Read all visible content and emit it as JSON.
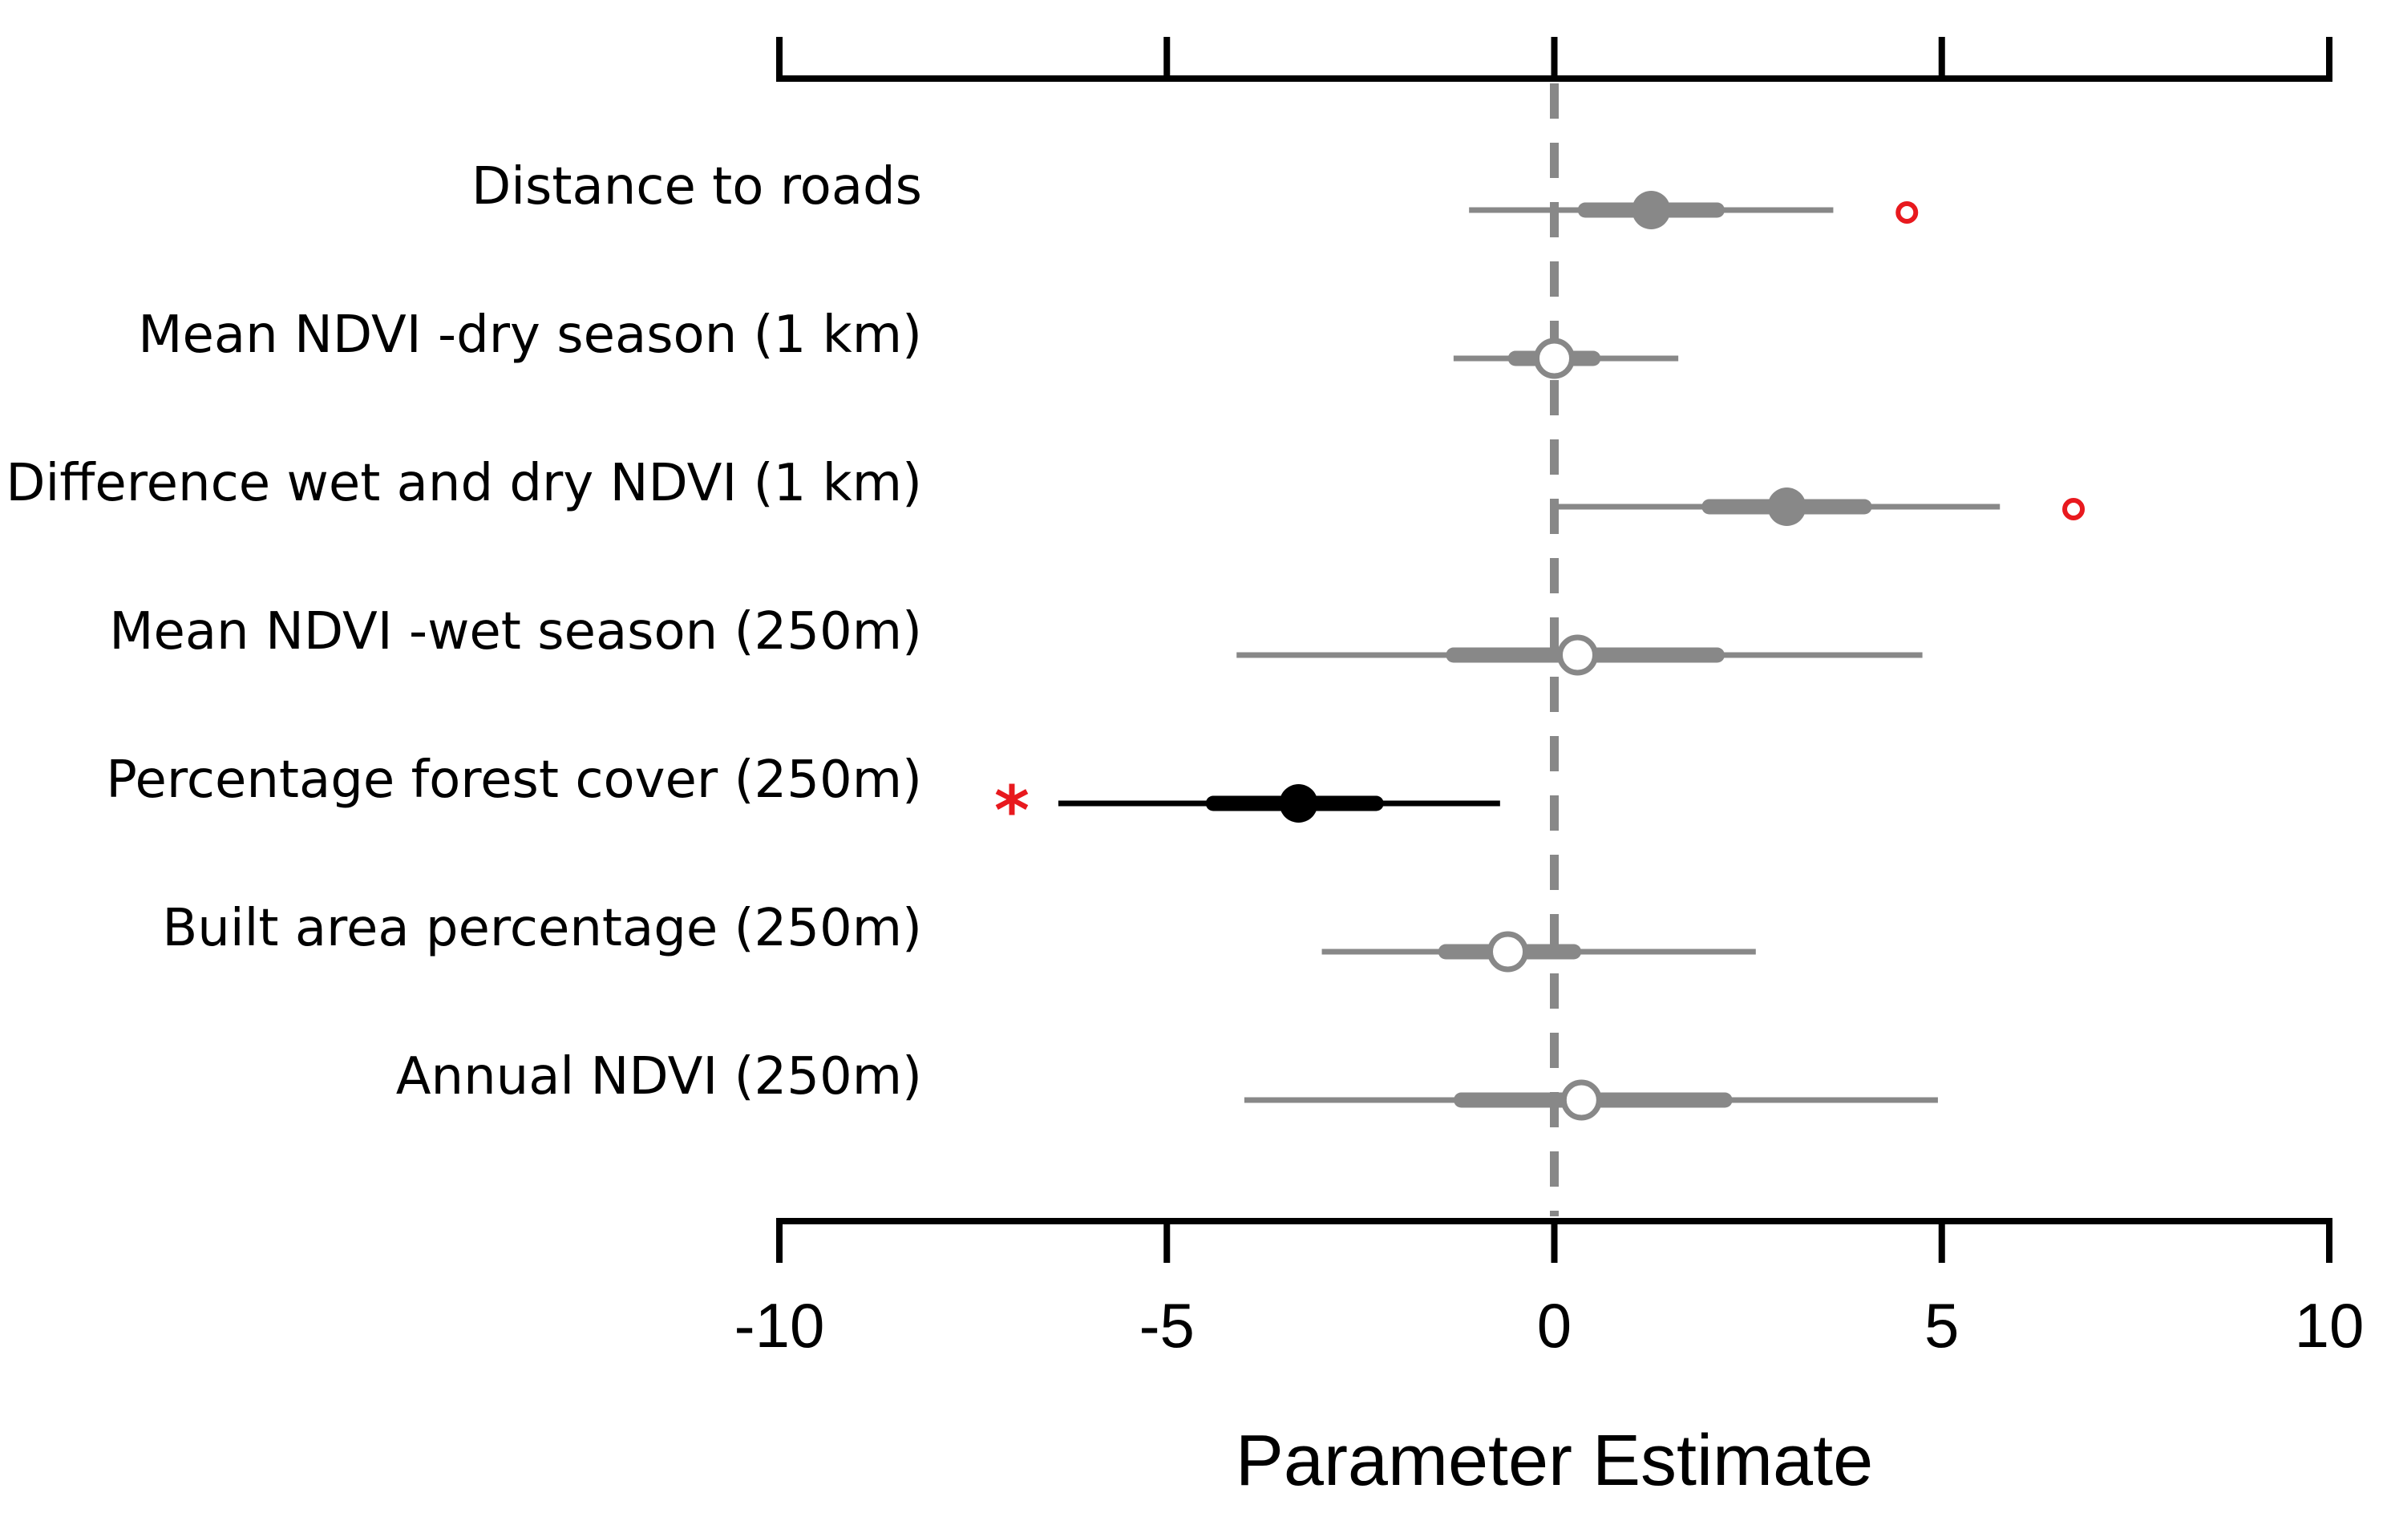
{
  "chart_data": {
    "type": "coefficient-plot",
    "title": "",
    "xlabel": "Parameter Estimate",
    "ylabel": "",
    "xlim": [
      -10,
      10
    ],
    "xticks": [
      -10,
      -5,
      0,
      5,
      10
    ],
    "xtick_labels": [
      "-10",
      "-5",
      "0",
      "5",
      "10"
    ],
    "reference_line": 0,
    "colors": {
      "nonsignificant": "#888888",
      "significant": "#000000",
      "flag": "#e8191e",
      "open_fill": "#ffffff"
    },
    "series": [
      {
        "name": "Distance to roads",
        "estimate": 1.25,
        "inner": [
          0.4,
          2.1
        ],
        "outer": [
          -1.1,
          3.6
        ],
        "marker": "filled",
        "color": "nonsignificant",
        "flag": "circle",
        "flag_x": 4.55
      },
      {
        "name": "Mean NDVI -dry season (1 km)",
        "estimate": 0.0,
        "inner": [
          -0.5,
          0.5
        ],
        "outer": [
          -1.3,
          1.6
        ],
        "marker": "open",
        "color": "nonsignificant",
        "flag": "",
        "flag_x": null
      },
      {
        "name": "Difference wet and dry NDVI (1 km)",
        "estimate": 3.0,
        "inner": [
          2.0,
          4.0
        ],
        "outer": [
          0.0,
          5.75
        ],
        "marker": "filled",
        "color": "nonsignificant",
        "flag": "circle",
        "flag_x": 6.7
      },
      {
        "name": "Mean NDVI -wet season (250m)",
        "estimate": 0.3,
        "inner": [
          -1.3,
          2.1
        ],
        "outer": [
          -4.1,
          4.75
        ],
        "marker": "open",
        "color": "nonsignificant",
        "flag": "",
        "flag_x": null
      },
      {
        "name": "Percentage forest cover (250m)",
        "estimate": -3.3,
        "inner": [
          -4.4,
          -2.3
        ],
        "outer": [
          -6.4,
          -0.7
        ],
        "marker": "filled",
        "color": "significant",
        "flag": "*",
        "flag_x": -7.0
      },
      {
        "name": "Built area percentage (250m)",
        "estimate": -0.6,
        "inner": [
          -1.4,
          0.25
        ],
        "outer": [
          -3.0,
          2.6
        ],
        "marker": "open",
        "color": "nonsignificant",
        "flag": "",
        "flag_x": null
      },
      {
        "name": "Annual NDVI (250m)",
        "estimate": 0.35,
        "inner": [
          -1.2,
          2.2
        ],
        "outer": [
          -4.0,
          4.95
        ],
        "marker": "open",
        "color": "nonsignificant",
        "flag": "",
        "flag_x": null
      }
    ]
  }
}
